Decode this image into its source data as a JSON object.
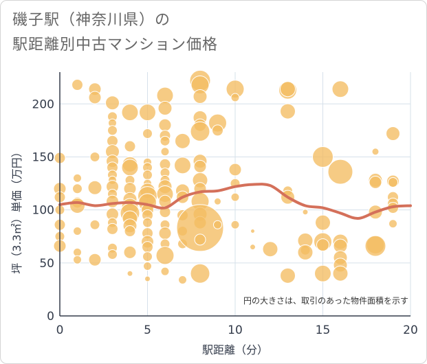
{
  "title": {
    "line1": "磯子駅（神奈川県）の",
    "line2": "駅距離別中古マンション価格"
  },
  "chart_data": {
    "type": "scatter",
    "title": "磯子駅（神奈川県）の駅距離別中古マンション価格",
    "xlabel": "駅距離（分）",
    "ylabel": "坪（3.3㎡）単価（万円）",
    "xlim": [
      0,
      20
    ],
    "ylim": [
      0,
      230
    ],
    "x_ticks": [
      "0",
      "5",
      "10",
      "15",
      "20"
    ],
    "y_ticks": [
      "0",
      "50",
      "100",
      "150",
      "200"
    ],
    "grid": true,
    "annotation": "円の大きさは、取引のあった物件面積を示す",
    "colors": {
      "bubble": "#f3bd62",
      "trend": "#d4705a",
      "grid": "#d6e0ea",
      "axis": "#333b4a"
    },
    "points": [
      {
        "x": 0,
        "y": 149,
        "s": 8
      },
      {
        "x": 0,
        "y": 120,
        "s": 9
      },
      {
        "x": 0,
        "y": 112,
        "s": 8
      },
      {
        "x": 0,
        "y": 100,
        "s": 7
      },
      {
        "x": 0,
        "y": 86,
        "s": 8
      },
      {
        "x": 0,
        "y": 75,
        "s": 7
      },
      {
        "x": 0,
        "y": 66,
        "s": 9
      },
      {
        "x": 1,
        "y": 218,
        "s": 8
      },
      {
        "x": 1,
        "y": 130,
        "s": 6
      },
      {
        "x": 1,
        "y": 120,
        "s": 7
      },
      {
        "x": 1,
        "y": 107,
        "s": 8
      },
      {
        "x": 1,
        "y": 104,
        "s": 11
      },
      {
        "x": 1,
        "y": 80,
        "s": 6
      },
      {
        "x": 1,
        "y": 60,
        "s": 6
      },
      {
        "x": 1,
        "y": 53,
        "s": 6
      },
      {
        "x": 2,
        "y": 214,
        "s": 9
      },
      {
        "x": 2,
        "y": 206,
        "s": 9
      },
      {
        "x": 2,
        "y": 150,
        "s": 7
      },
      {
        "x": 2,
        "y": 121,
        "s": 10
      },
      {
        "x": 2,
        "y": 86,
        "s": 7
      },
      {
        "x": 2,
        "y": 53,
        "s": 9
      },
      {
        "x": 3,
        "y": 201,
        "s": 10
      },
      {
        "x": 3,
        "y": 188,
        "s": 7
      },
      {
        "x": 3,
        "y": 182,
        "s": 6
      },
      {
        "x": 3,
        "y": 175,
        "s": 7
      },
      {
        "x": 3,
        "y": 165,
        "s": 8
      },
      {
        "x": 3,
        "y": 155,
        "s": 10
      },
      {
        "x": 3,
        "y": 146,
        "s": 9
      },
      {
        "x": 3,
        "y": 140,
        "s": 8
      },
      {
        "x": 3,
        "y": 133,
        "s": 7
      },
      {
        "x": 3,
        "y": 128,
        "s": 6
      },
      {
        "x": 3,
        "y": 122,
        "s": 9
      },
      {
        "x": 3,
        "y": 115,
        "s": 7
      },
      {
        "x": 3,
        "y": 108,
        "s": 9
      },
      {
        "x": 3,
        "y": 96,
        "s": 9
      },
      {
        "x": 3,
        "y": 88,
        "s": 7
      },
      {
        "x": 3,
        "y": 82,
        "s": 8
      },
      {
        "x": 3,
        "y": 64,
        "s": 7
      },
      {
        "x": 3,
        "y": 58,
        "s": 7
      },
      {
        "x": 4,
        "y": 192,
        "s": 12
      },
      {
        "x": 4,
        "y": 160,
        "s": 8
      },
      {
        "x": 4,
        "y": 143,
        "s": 11
      },
      {
        "x": 4,
        "y": 140,
        "s": 12
      },
      {
        "x": 4,
        "y": 128,
        "s": 7
      },
      {
        "x": 4,
        "y": 120,
        "s": 9
      },
      {
        "x": 4,
        "y": 110,
        "s": 10
      },
      {
        "x": 4,
        "y": 103,
        "s": 12
      },
      {
        "x": 4,
        "y": 97,
        "s": 14
      },
      {
        "x": 4,
        "y": 92,
        "s": 11
      },
      {
        "x": 4,
        "y": 85,
        "s": 10
      },
      {
        "x": 4,
        "y": 80,
        "s": 8
      },
      {
        "x": 4,
        "y": 60,
        "s": 9
      },
      {
        "x": 4,
        "y": 40,
        "s": 4
      },
      {
        "x": 5,
        "y": 192,
        "s": 12
      },
      {
        "x": 5,
        "y": 172,
        "s": 7
      },
      {
        "x": 5,
        "y": 145,
        "s": 6
      },
      {
        "x": 5,
        "y": 140,
        "s": 7
      },
      {
        "x": 5,
        "y": 133,
        "s": 7
      },
      {
        "x": 5,
        "y": 125,
        "s": 6
      },
      {
        "x": 5,
        "y": 118,
        "s": 11
      },
      {
        "x": 5,
        "y": 113,
        "s": 14
      },
      {
        "x": 5,
        "y": 107,
        "s": 13
      },
      {
        "x": 5,
        "y": 100,
        "s": 9
      },
      {
        "x": 5,
        "y": 95,
        "s": 8
      },
      {
        "x": 5,
        "y": 88,
        "s": 7
      },
      {
        "x": 5,
        "y": 78,
        "s": 8
      },
      {
        "x": 5,
        "y": 70,
        "s": 9
      },
      {
        "x": 5,
        "y": 65,
        "s": 8
      },
      {
        "x": 5,
        "y": 56,
        "s": 7
      },
      {
        "x": 5,
        "y": 47,
        "s": 6
      },
      {
        "x": 5,
        "y": 35,
        "s": 4
      },
      {
        "x": 6,
        "y": 208,
        "s": 12
      },
      {
        "x": 6,
        "y": 196,
        "s": 10
      },
      {
        "x": 6,
        "y": 180,
        "s": 9
      },
      {
        "x": 6,
        "y": 170,
        "s": 8
      },
      {
        "x": 6,
        "y": 165,
        "s": 7
      },
      {
        "x": 6,
        "y": 155,
        "s": 6
      },
      {
        "x": 6,
        "y": 143,
        "s": 8
      },
      {
        "x": 6,
        "y": 135,
        "s": 7
      },
      {
        "x": 6,
        "y": 128,
        "s": 7
      },
      {
        "x": 6,
        "y": 122,
        "s": 10
      },
      {
        "x": 6,
        "y": 115,
        "s": 12
      },
      {
        "x": 6,
        "y": 108,
        "s": 9
      },
      {
        "x": 6,
        "y": 98,
        "s": 8
      },
      {
        "x": 6,
        "y": 86,
        "s": 7
      },
      {
        "x": 6,
        "y": 78,
        "s": 9
      },
      {
        "x": 6,
        "y": 68,
        "s": 7
      },
      {
        "x": 6,
        "y": 57,
        "s": 13
      },
      {
        "x": 6,
        "y": 42,
        "s": 6
      },
      {
        "x": 7,
        "y": 165,
        "s": 11
      },
      {
        "x": 7,
        "y": 142,
        "s": 12
      },
      {
        "x": 7,
        "y": 118,
        "s": 10
      },
      {
        "x": 7,
        "y": 112,
        "s": 9
      },
      {
        "x": 7,
        "y": 95,
        "s": 8
      },
      {
        "x": 7,
        "y": 80,
        "s": 7
      },
      {
        "x": 7,
        "y": 68,
        "s": 7
      },
      {
        "x": 7,
        "y": 34,
        "s": 6
      },
      {
        "x": 8,
        "y": 222,
        "s": 15
      },
      {
        "x": 8,
        "y": 218,
        "s": 13
      },
      {
        "x": 8,
        "y": 207,
        "s": 10
      },
      {
        "x": 8,
        "y": 187,
        "s": 10
      },
      {
        "x": 8,
        "y": 180,
        "s": 9
      },
      {
        "x": 8,
        "y": 174,
        "s": 14
      },
      {
        "x": 8,
        "y": 146,
        "s": 10
      },
      {
        "x": 8,
        "y": 141,
        "s": 9
      },
      {
        "x": 8,
        "y": 128,
        "s": 11
      },
      {
        "x": 8,
        "y": 120,
        "s": 9
      },
      {
        "x": 8,
        "y": 108,
        "s": 13
      },
      {
        "x": 8,
        "y": 96,
        "s": 10
      },
      {
        "x": 8,
        "y": 88,
        "s": 9
      },
      {
        "x": 8,
        "y": 83,
        "s": 34
      },
      {
        "x": 8,
        "y": 72,
        "s": 8
      },
      {
        "x": 8,
        "y": 40,
        "s": 14
      },
      {
        "x": 9,
        "y": 182,
        "s": 13
      },
      {
        "x": 9,
        "y": 175,
        "s": 8
      },
      {
        "x": 9,
        "y": 108,
        "s": 5
      },
      {
        "x": 9,
        "y": 86,
        "s": 6
      },
      {
        "x": 10,
        "y": 214,
        "s": 13
      },
      {
        "x": 10,
        "y": 206,
        "s": 6
      },
      {
        "x": 10,
        "y": 138,
        "s": 9
      },
      {
        "x": 10,
        "y": 125,
        "s": 7
      },
      {
        "x": 10,
        "y": 112,
        "s": 6
      },
      {
        "x": 10,
        "y": 86,
        "s": 6
      },
      {
        "x": 11,
        "y": 80,
        "s": 3
      },
      {
        "x": 11,
        "y": 65,
        "s": 4
      },
      {
        "x": 12,
        "y": 63,
        "s": 11
      },
      {
        "x": 13,
        "y": 213,
        "s": 13
      },
      {
        "x": 13,
        "y": 214,
        "s": 11
      },
      {
        "x": 13,
        "y": 193,
        "s": 11
      },
      {
        "x": 13,
        "y": 118,
        "s": 7
      },
      {
        "x": 13,
        "y": 112,
        "s": 10
      },
      {
        "x": 13,
        "y": 38,
        "s": 11
      },
      {
        "x": 14,
        "y": 98,
        "s": 4
      },
      {
        "x": 14,
        "y": 71,
        "s": 11
      },
      {
        "x": 14,
        "y": 62,
        "s": 7
      },
      {
        "x": 14,
        "y": 60,
        "s": 11
      },
      {
        "x": 15,
        "y": 150,
        "s": 15
      },
      {
        "x": 15,
        "y": 88,
        "s": 11
      },
      {
        "x": 15,
        "y": 70,
        "s": 13
      },
      {
        "x": 15,
        "y": 67,
        "s": 9
      },
      {
        "x": 15,
        "y": 40,
        "s": 12
      },
      {
        "x": 16,
        "y": 214,
        "s": 12
      },
      {
        "x": 16,
        "y": 136,
        "s": 18
      },
      {
        "x": 16,
        "y": 70,
        "s": 11
      },
      {
        "x": 16,
        "y": 66,
        "s": 10
      },
      {
        "x": 16,
        "y": 55,
        "s": 10
      },
      {
        "x": 16,
        "y": 48,
        "s": 10
      },
      {
        "x": 16,
        "y": 40,
        "s": 11
      },
      {
        "x": 18,
        "y": 155,
        "s": 5
      },
      {
        "x": 18,
        "y": 128,
        "s": 10
      },
      {
        "x": 18,
        "y": 126,
        "s": 9
      },
      {
        "x": 18,
        "y": 98,
        "s": 10
      },
      {
        "x": 18,
        "y": 67,
        "s": 13
      },
      {
        "x": 18,
        "y": 66,
        "s": 15
      },
      {
        "x": 19,
        "y": 172,
        "s": 10
      },
      {
        "x": 19,
        "y": 127,
        "s": 9
      },
      {
        "x": 19,
        "y": 126,
        "s": 7
      },
      {
        "x": 19,
        "y": 112,
        "s": 8
      },
      {
        "x": 19,
        "y": 106,
        "s": 8
      },
      {
        "x": 19,
        "y": 102,
        "s": 8
      },
      {
        "x": 19,
        "y": 87,
        "s": 6
      }
    ],
    "trend": {
      "x": [
        0,
        1,
        2,
        3,
        4,
        5,
        6,
        7,
        8,
        9,
        10,
        11,
        12,
        13,
        14,
        15,
        16,
        17,
        18,
        19,
        20
      ],
      "y": [
        105,
        107,
        104,
        106,
        107,
        105,
        102,
        112,
        117,
        118,
        122,
        124,
        123,
        112,
        104,
        102,
        97,
        92,
        98,
        103,
        104
      ]
    }
  }
}
